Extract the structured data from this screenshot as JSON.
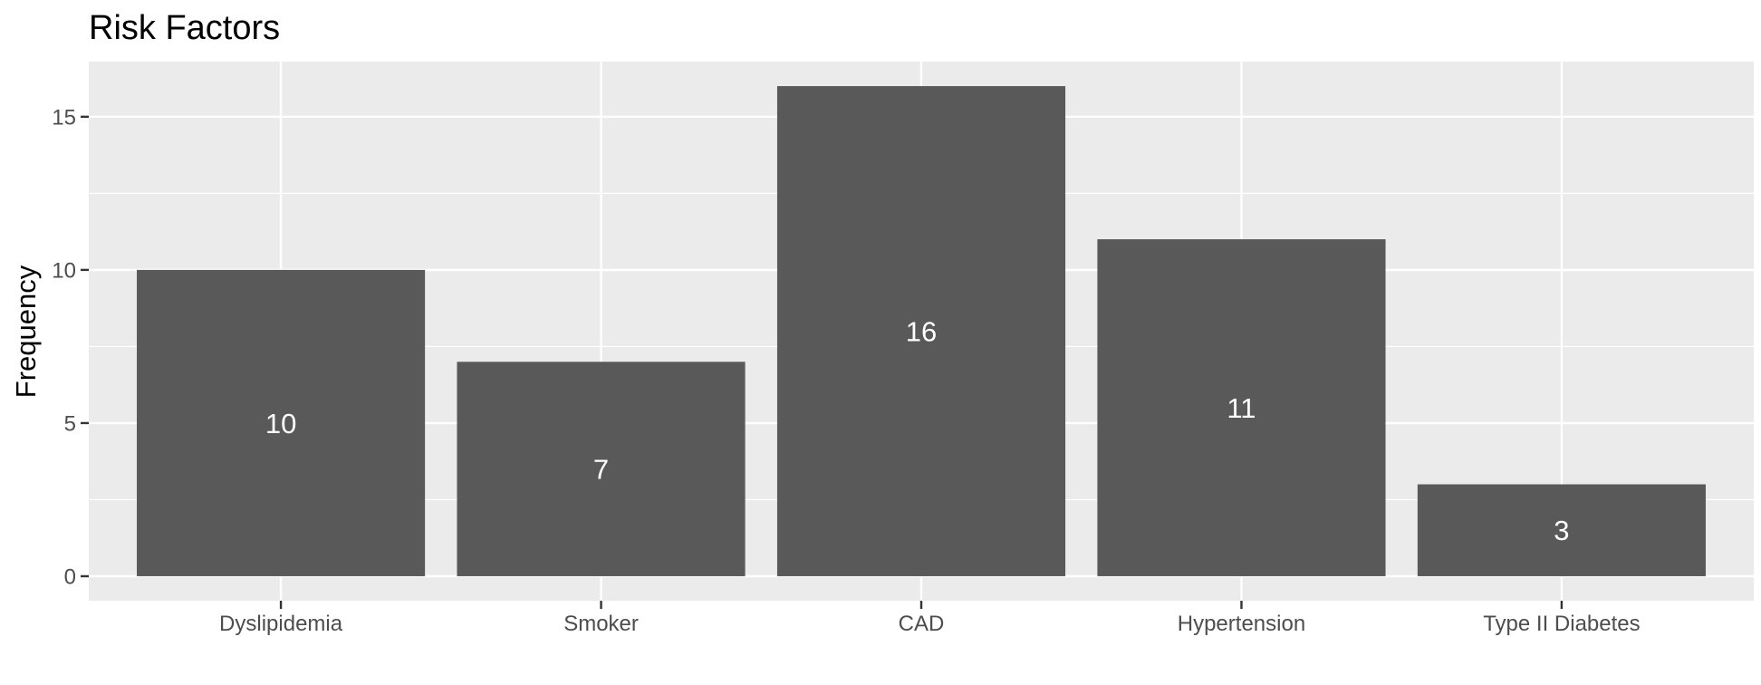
{
  "chart_data": {
    "type": "bar",
    "title": "Risk Factors",
    "xlabel": "",
    "ylabel": "Frequency",
    "categories": [
      "Dyslipidemia",
      "Smoker",
      "CAD",
      "Hypertension",
      "Type II Diabetes"
    ],
    "values": [
      10,
      7,
      16,
      11,
      3
    ],
    "data_labels": [
      "10",
      "7",
      "16",
      "11",
      "3"
    ],
    "ylim": [
      -0.8,
      16.8
    ],
    "yticks": [
      0,
      5,
      10,
      15
    ],
    "ytick_labels": [
      "0",
      "5",
      "10",
      "15"
    ],
    "grid": true,
    "legend": "none",
    "colors": {
      "bar": "#595959",
      "panel": "#ebebeb",
      "grid": "#ffffff",
      "tick": "#333333",
      "tick_label": "#4d4d4d",
      "bar_label": "#ffffff"
    }
  }
}
